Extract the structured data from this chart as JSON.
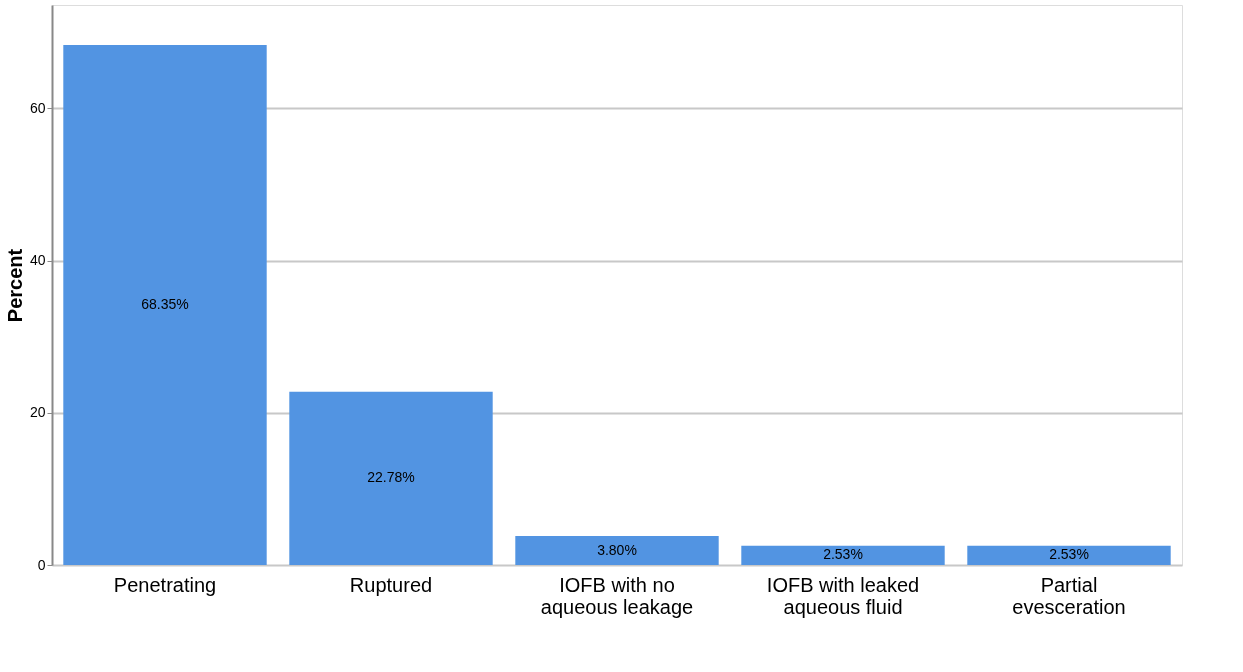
{
  "chart_data": {
    "type": "bar",
    "ylabel": "Percent",
    "categories": [
      "Penetrating",
      "Ruptured",
      "IOFB with no aqueous leakage",
      "IOFB with leaked aqueous fluid",
      "Partial evesceration"
    ],
    "values": [
      68.35,
      22.78,
      3.8,
      2.53,
      2.53
    ],
    "value_labels": [
      "68.35%",
      "22.78%",
      "3.80%",
      "2.53%",
      "2.53%"
    ],
    "color": "#5294e2",
    "ylim": [
      0,
      73.6
    ],
    "yticks": [
      0,
      20,
      40,
      60
    ],
    "grid": "y"
  }
}
